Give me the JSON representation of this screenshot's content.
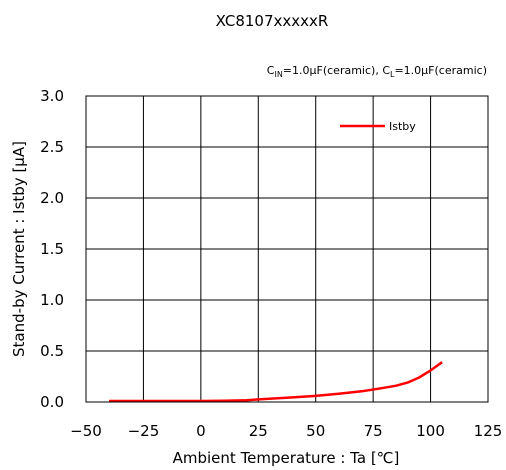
{
  "chart_data": {
    "type": "line",
    "title": "XC8107xxxxxR",
    "conditions": {
      "cin_prefix": "C",
      "cin_sub": "IN",
      "cin_rest": "=1.0μF(ceramic), ",
      "cl_prefix": "C",
      "cl_sub": "L",
      "cl_rest": "=1.0μF(ceramic)"
    },
    "xlabel": "Ambient Temperature : Ta [℃]",
    "ylabel": "Stand-by Current : Istby [μA]",
    "xlim": [
      -50,
      125
    ],
    "ylim": [
      0.0,
      3.0
    ],
    "xticks": [
      -50,
      -25,
      0,
      25,
      50,
      75,
      100,
      125
    ],
    "xtick_labels": [
      "−50",
      "−25",
      "0",
      "25",
      "50",
      "75",
      "100",
      "125"
    ],
    "yticks": [
      0.0,
      0.5,
      1.0,
      1.5,
      2.0,
      2.5,
      3.0
    ],
    "ytick_labels": [
      "0.0",
      "0.5",
      "1.0",
      "1.5",
      "2.0",
      "2.5",
      "3.0"
    ],
    "grid": true,
    "legend_position": "top-right",
    "series": [
      {
        "name": "Istby",
        "color": "#ff0000",
        "x": [
          -40,
          -25,
          0,
          10,
          20,
          25,
          40,
          50,
          60,
          70,
          80,
          85,
          90,
          95,
          100,
          105
        ],
        "y": [
          0.01,
          0.01,
          0.01,
          0.012,
          0.018,
          0.025,
          0.045,
          0.06,
          0.08,
          0.105,
          0.14,
          0.16,
          0.19,
          0.24,
          0.31,
          0.39
        ]
      }
    ]
  }
}
